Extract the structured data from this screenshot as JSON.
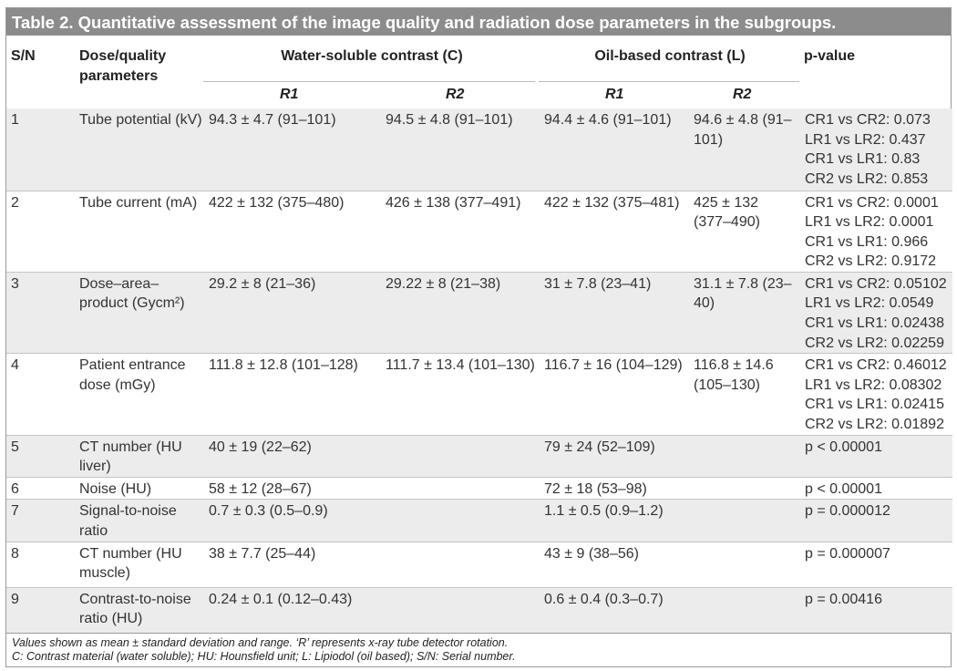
{
  "title": "Table 2. Quantitative assessment of the image quality and radiation dose parameters in the subgroups.",
  "headers": {
    "sn": "S/N",
    "param": "Dose/quality parameters",
    "water": "Water-soluble contrast (C)",
    "oil": "Oil-based contrast (L)",
    "pvalue": "p-value",
    "r1": "R1",
    "r2": "R2"
  },
  "rows": [
    {
      "sn": "1",
      "param": "Tube potential (kV)",
      "c_r1": "94.3 ± 4.7 (91–101)",
      "c_r2": "94.5 ± 4.8 (91–101)",
      "l_r1": "94.4 ± 4.6 (91–101)",
      "l_r2": "94.6 ± 4.8 (91–101)",
      "p": [
        "CR1 vs CR2: 0.073",
        "LR1 vs LR2: 0.437",
        "CR1 vs LR1: 0.83",
        "CR2 vs LR2: 0.853"
      ]
    },
    {
      "sn": "2",
      "param": "Tube current (mA)",
      "c_r1": "422 ± 132 (375–480)",
      "c_r2": "426 ± 138 (377–491)",
      "l_r1": "422 ± 132 (375–481)",
      "l_r2": "425 ± 132 (377–490)",
      "p": [
        "CR1 vs CR2: 0.0001",
        "LR1 vs LR2: 0.0001",
        "CR1 vs LR1: 0.966",
        "CR2 vs LR2: 0.9172"
      ]
    },
    {
      "sn": "3",
      "param": "Dose–area–product (Gycm²)",
      "c_r1": "29.2 ± 8 (21–36)",
      "c_r2": "29.22 ± 8 (21–38)",
      "l_r1": "31 ± 7.8 (23–41)",
      "l_r2": "31.1 ± 7.8 (23–40)",
      "p": [
        "CR1 vs CR2: 0.05102",
        "LR1 vs LR2: 0.0549",
        "CR1 vs LR1: 0.02438",
        "CR2 vs LR2: 0.02259"
      ]
    },
    {
      "sn": "4",
      "param": "Patient entrance dose (mGy)",
      "c_r1": "111.8 ± 12.8 (101–128)",
      "c_r2": "111.7 ± 13.4 (101–130)",
      "l_r1": "116.7 ± 16 (104–129)",
      "l_r2": "116.8 ± 14.6 (105–130)",
      "p": [
        "CR1 vs CR2: 0.46012",
        "LR1 vs LR2: 0.08302",
        "CR1 vs LR1: 0.02415",
        "CR2 vs LR2: 0.01892"
      ]
    },
    {
      "sn": "5",
      "param": "CT number (HU liver)",
      "c_r1": "40 ± 19 (22–62)",
      "c_r2": "",
      "l_r1": "79 ± 24 (52–109)",
      "l_r2": "",
      "p": [
        "p < 0.00001"
      ]
    },
    {
      "sn": "6",
      "param": "Noise (HU)",
      "c_r1": "58 ± 12 (28–67)",
      "c_r2": "",
      "l_r1": "72 ± 18 (53–98)",
      "l_r2": "",
      "p": [
        "p < 0.00001"
      ]
    },
    {
      "sn": "7",
      "param": "Signal-to-noise ratio",
      "c_r1": "0.7 ± 0.3 (0.5–0.9)",
      "c_r2": "",
      "l_r1": "1.1 ± 0.5 (0.9–1.2)",
      "l_r2": "",
      "p": [
        "p = 0.000012"
      ]
    },
    {
      "sn": "8",
      "param": "CT number (HU muscle)",
      "c_r1": "38 ± 7.7 (25–44)",
      "c_r2": "",
      "l_r1": "43 ± 9 (38–56)",
      "l_r2": "",
      "p": [
        "p = 0.000007"
      ]
    },
    {
      "sn": "9",
      "param": "Contrast-to-noise ratio (HU)",
      "c_r1": "0.24 ± 0.1 (0.12–0.43)",
      "c_r2": "",
      "l_r1": "0.6 ± 0.4 (0.3–0.7)",
      "l_r2": "",
      "p": [
        "p = 0.00416"
      ]
    }
  ],
  "footnotes": [
    "Values shown as mean ± standard deviation and range. ‘R’ represents x-ray tube detector rotation.",
    "C: Contrast material (water soluble); HU: Hounsfield unit; L: Lipiodol (oil based); S/N: Serial number."
  ],
  "colors": {
    "title_bg": "#8c8c8c",
    "row_shade": "#ececec",
    "rule": "#c4c4c4"
  }
}
